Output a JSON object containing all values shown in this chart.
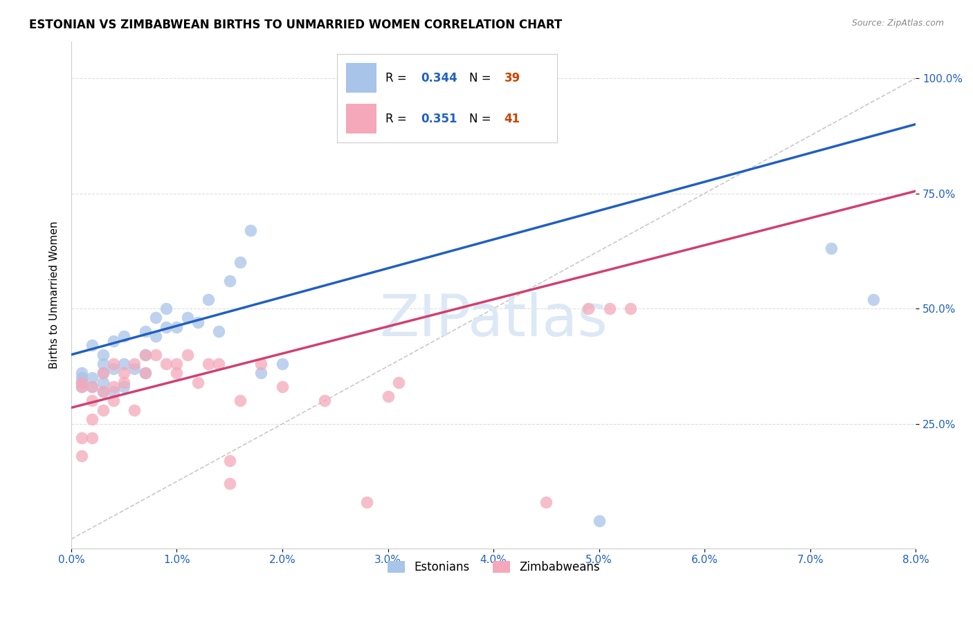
{
  "title": "ESTONIAN VS ZIMBABWEAN BIRTHS TO UNMARRIED WOMEN CORRELATION CHART",
  "source": "Source: ZipAtlas.com",
  "ylabel": "Births to Unmarried Women",
  "xlim": [
    0.0,
    0.08
  ],
  "ylim": [
    -0.02,
    1.08
  ],
  "xticks": [
    0.0,
    0.01,
    0.02,
    0.03,
    0.04,
    0.05,
    0.06,
    0.07,
    0.08
  ],
  "xticklabels": [
    "0.0%",
    "1.0%",
    "2.0%",
    "3.0%",
    "4.0%",
    "5.0%",
    "6.0%",
    "7.0%",
    "8.0%"
  ],
  "yticks": [
    0.25,
    0.5,
    0.75,
    1.0
  ],
  "yticklabels": [
    "25.0%",
    "50.0%",
    "75.0%",
    "100.0%"
  ],
  "legend_R_blue": "0.344",
  "legend_N_blue": "39",
  "legend_R_pink": "0.351",
  "legend_N_pink": "41",
  "blue_color": "#a8c4e8",
  "pink_color": "#f4a8ba",
  "blue_line_color": "#2060c0",
  "pink_line_color": "#d04070",
  "ref_line_color": "#bbbbbb",
  "grid_color": "#dddddd",
  "watermark": "ZIPatlas",
  "watermark_color": "#dce8f5",
  "blue_line_x0": 0.0,
  "blue_line_y0": 0.4,
  "blue_line_x1": 0.08,
  "blue_line_y1": 0.9,
  "pink_line_x0": 0.0,
  "pink_line_y0": 0.285,
  "pink_line_x1": 0.08,
  "pink_line_y1": 0.755,
  "blue_scatter_x": [
    0.001,
    0.001,
    0.001,
    0.001,
    0.002,
    0.002,
    0.002,
    0.003,
    0.003,
    0.003,
    0.003,
    0.003,
    0.004,
    0.004,
    0.004,
    0.005,
    0.005,
    0.005,
    0.006,
    0.007,
    0.007,
    0.007,
    0.008,
    0.008,
    0.009,
    0.009,
    0.01,
    0.011,
    0.012,
    0.013,
    0.014,
    0.015,
    0.016,
    0.017,
    0.018,
    0.02,
    0.05,
    0.072,
    0.076
  ],
  "blue_scatter_y": [
    0.33,
    0.34,
    0.35,
    0.36,
    0.33,
    0.35,
    0.42,
    0.32,
    0.34,
    0.36,
    0.38,
    0.4,
    0.32,
    0.37,
    0.43,
    0.33,
    0.38,
    0.44,
    0.37,
    0.36,
    0.4,
    0.45,
    0.44,
    0.48,
    0.46,
    0.5,
    0.46,
    0.48,
    0.47,
    0.52,
    0.45,
    0.56,
    0.6,
    0.67,
    0.36,
    0.38,
    0.04,
    0.63,
    0.52
  ],
  "pink_scatter_x": [
    0.001,
    0.001,
    0.001,
    0.001,
    0.002,
    0.002,
    0.002,
    0.002,
    0.003,
    0.003,
    0.003,
    0.004,
    0.004,
    0.004,
    0.005,
    0.005,
    0.006,
    0.006,
    0.007,
    0.007,
    0.008,
    0.009,
    0.01,
    0.01,
    0.011,
    0.012,
    0.013,
    0.014,
    0.015,
    0.015,
    0.016,
    0.018,
    0.02,
    0.024,
    0.028,
    0.03,
    0.031,
    0.045,
    0.049,
    0.051,
    0.053
  ],
  "pink_scatter_y": [
    0.33,
    0.34,
    0.22,
    0.18,
    0.22,
    0.26,
    0.3,
    0.33,
    0.28,
    0.32,
    0.36,
    0.3,
    0.33,
    0.38,
    0.34,
    0.36,
    0.28,
    0.38,
    0.36,
    0.4,
    0.4,
    0.38,
    0.36,
    0.38,
    0.4,
    0.34,
    0.38,
    0.38,
    0.12,
    0.17,
    0.3,
    0.38,
    0.33,
    0.3,
    0.08,
    0.31,
    0.34,
    0.08,
    0.5,
    0.5,
    0.5
  ]
}
